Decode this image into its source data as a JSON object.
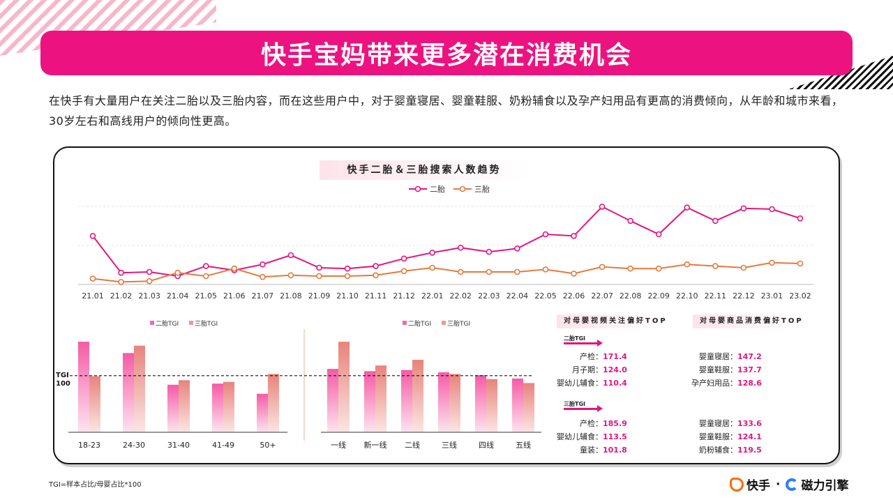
{
  "title": "快手宝妈带来更多潜在消费机会",
  "intro": "在快手有大量用户在关注二胎以及三胎内容，而在这些用户中，对于婴童寝居、婴童鞋服、奶粉辅食以及孕产妇用品有更高的消费倾向，从年龄和城市来看，30岁左右和高线用户的倾向性更高。",
  "colors": {
    "brand": "#ec1380",
    "second": "#e3157f",
    "third": "#e57a3c"
  },
  "chart_data": [
    {
      "type": "line",
      "title": "快手二胎＆三胎搜索人数趋势",
      "legend_placement": "top-center",
      "grid": true,
      "x": [
        "21.01",
        "21.02",
        "21.03",
        "21.04",
        "21.05",
        "21.06",
        "21.07",
        "21.08",
        "21.09",
        "21.10",
        "21.11",
        "21.12",
        "22.01",
        "22.02",
        "22.03",
        "22.04",
        "22.05",
        "22.06",
        "22.07",
        "22.08",
        "22.09",
        "22.10",
        "22.11",
        "22.12",
        "23.01",
        "23.02"
      ],
      "ylim": [
        0,
        100
      ],
      "series": [
        {
          "name": "二胎",
          "color": "#e3157f",
          "values": [
            58,
            14,
            15,
            10,
            22,
            17,
            24,
            35,
            20,
            19,
            22,
            31,
            38,
            44,
            39,
            43,
            60,
            58,
            93,
            76,
            60,
            92,
            76,
            91,
            90,
            79
          ]
        },
        {
          "name": "三胎",
          "color": "#e57a3c",
          "values": [
            7,
            3,
            4,
            14,
            10,
            19,
            9,
            11,
            10,
            10,
            11,
            16,
            20,
            15,
            15,
            15,
            18,
            13,
            21,
            19,
            19,
            24,
            22,
            20,
            26,
            25
          ]
        }
      ]
    },
    {
      "type": "bar",
      "legend_placement": "top",
      "reference_line": {
        "value": 100,
        "label": "TGI\n100"
      },
      "categories": [
        "18-23",
        "24-30",
        "31-40",
        "41-49",
        "50+"
      ],
      "ylim": [
        0,
        170
      ],
      "series": [
        {
          "name": "二胎TGI",
          "values": [
            160,
            140,
            84,
            86,
            68
          ]
        },
        {
          "name": "三胎TGI",
          "values": [
            99,
            153,
            92,
            89,
            103
          ]
        }
      ]
    },
    {
      "type": "bar",
      "legend_placement": "top",
      "categories": [
        "一线",
        "新一线",
        "二线",
        "三线",
        "四线",
        "五线"
      ],
      "ylim": [
        0,
        170
      ],
      "series": [
        {
          "name": "二胎TGI",
          "values": [
            112,
            108,
            110,
            106,
            101,
            95
          ]
        },
        {
          "name": "三胎TGI",
          "values": [
            160,
            118,
            128,
            103,
            94,
            87
          ]
        }
      ]
    }
  ],
  "preferences": {
    "video_head": "对母婴视频关注偏好TOP",
    "goods_head": "对母婴商品消费偏好TOP",
    "second": {
      "tag": "二胎TGI",
      "video": [
        {
          "label": "产检：",
          "value": "171.4"
        },
        {
          "label": "月子期：",
          "value": "124.0"
        },
        {
          "label": "婴幼儿辅食：",
          "value": "110.4"
        }
      ],
      "goods": [
        {
          "label": "婴童寝居：",
          "value": "147.2"
        },
        {
          "label": "婴童鞋服：",
          "value": "137.7"
        },
        {
          "label": "孕产妇用品：",
          "value": "128.6"
        }
      ]
    },
    "third": {
      "tag": "三胎TGI",
      "video": [
        {
          "label": "产检：",
          "value": "185.9"
        },
        {
          "label": "婴幼儿辅食：",
          "value": "113.5"
        },
        {
          "label": "童装：",
          "value": "101.8"
        }
      ],
      "goods": [
        {
          "label": "婴童寝居：",
          "value": "133.6"
        },
        {
          "label": "婴童鞋服：",
          "value": "124.1"
        },
        {
          "label": "奶粉辅食：",
          "value": "119.5"
        }
      ]
    }
  },
  "footnote": "TGI=样本占比/母婴占比*100",
  "brand": {
    "kuaishou": "快手",
    "sep": "·",
    "cili": "磁力引擎"
  }
}
